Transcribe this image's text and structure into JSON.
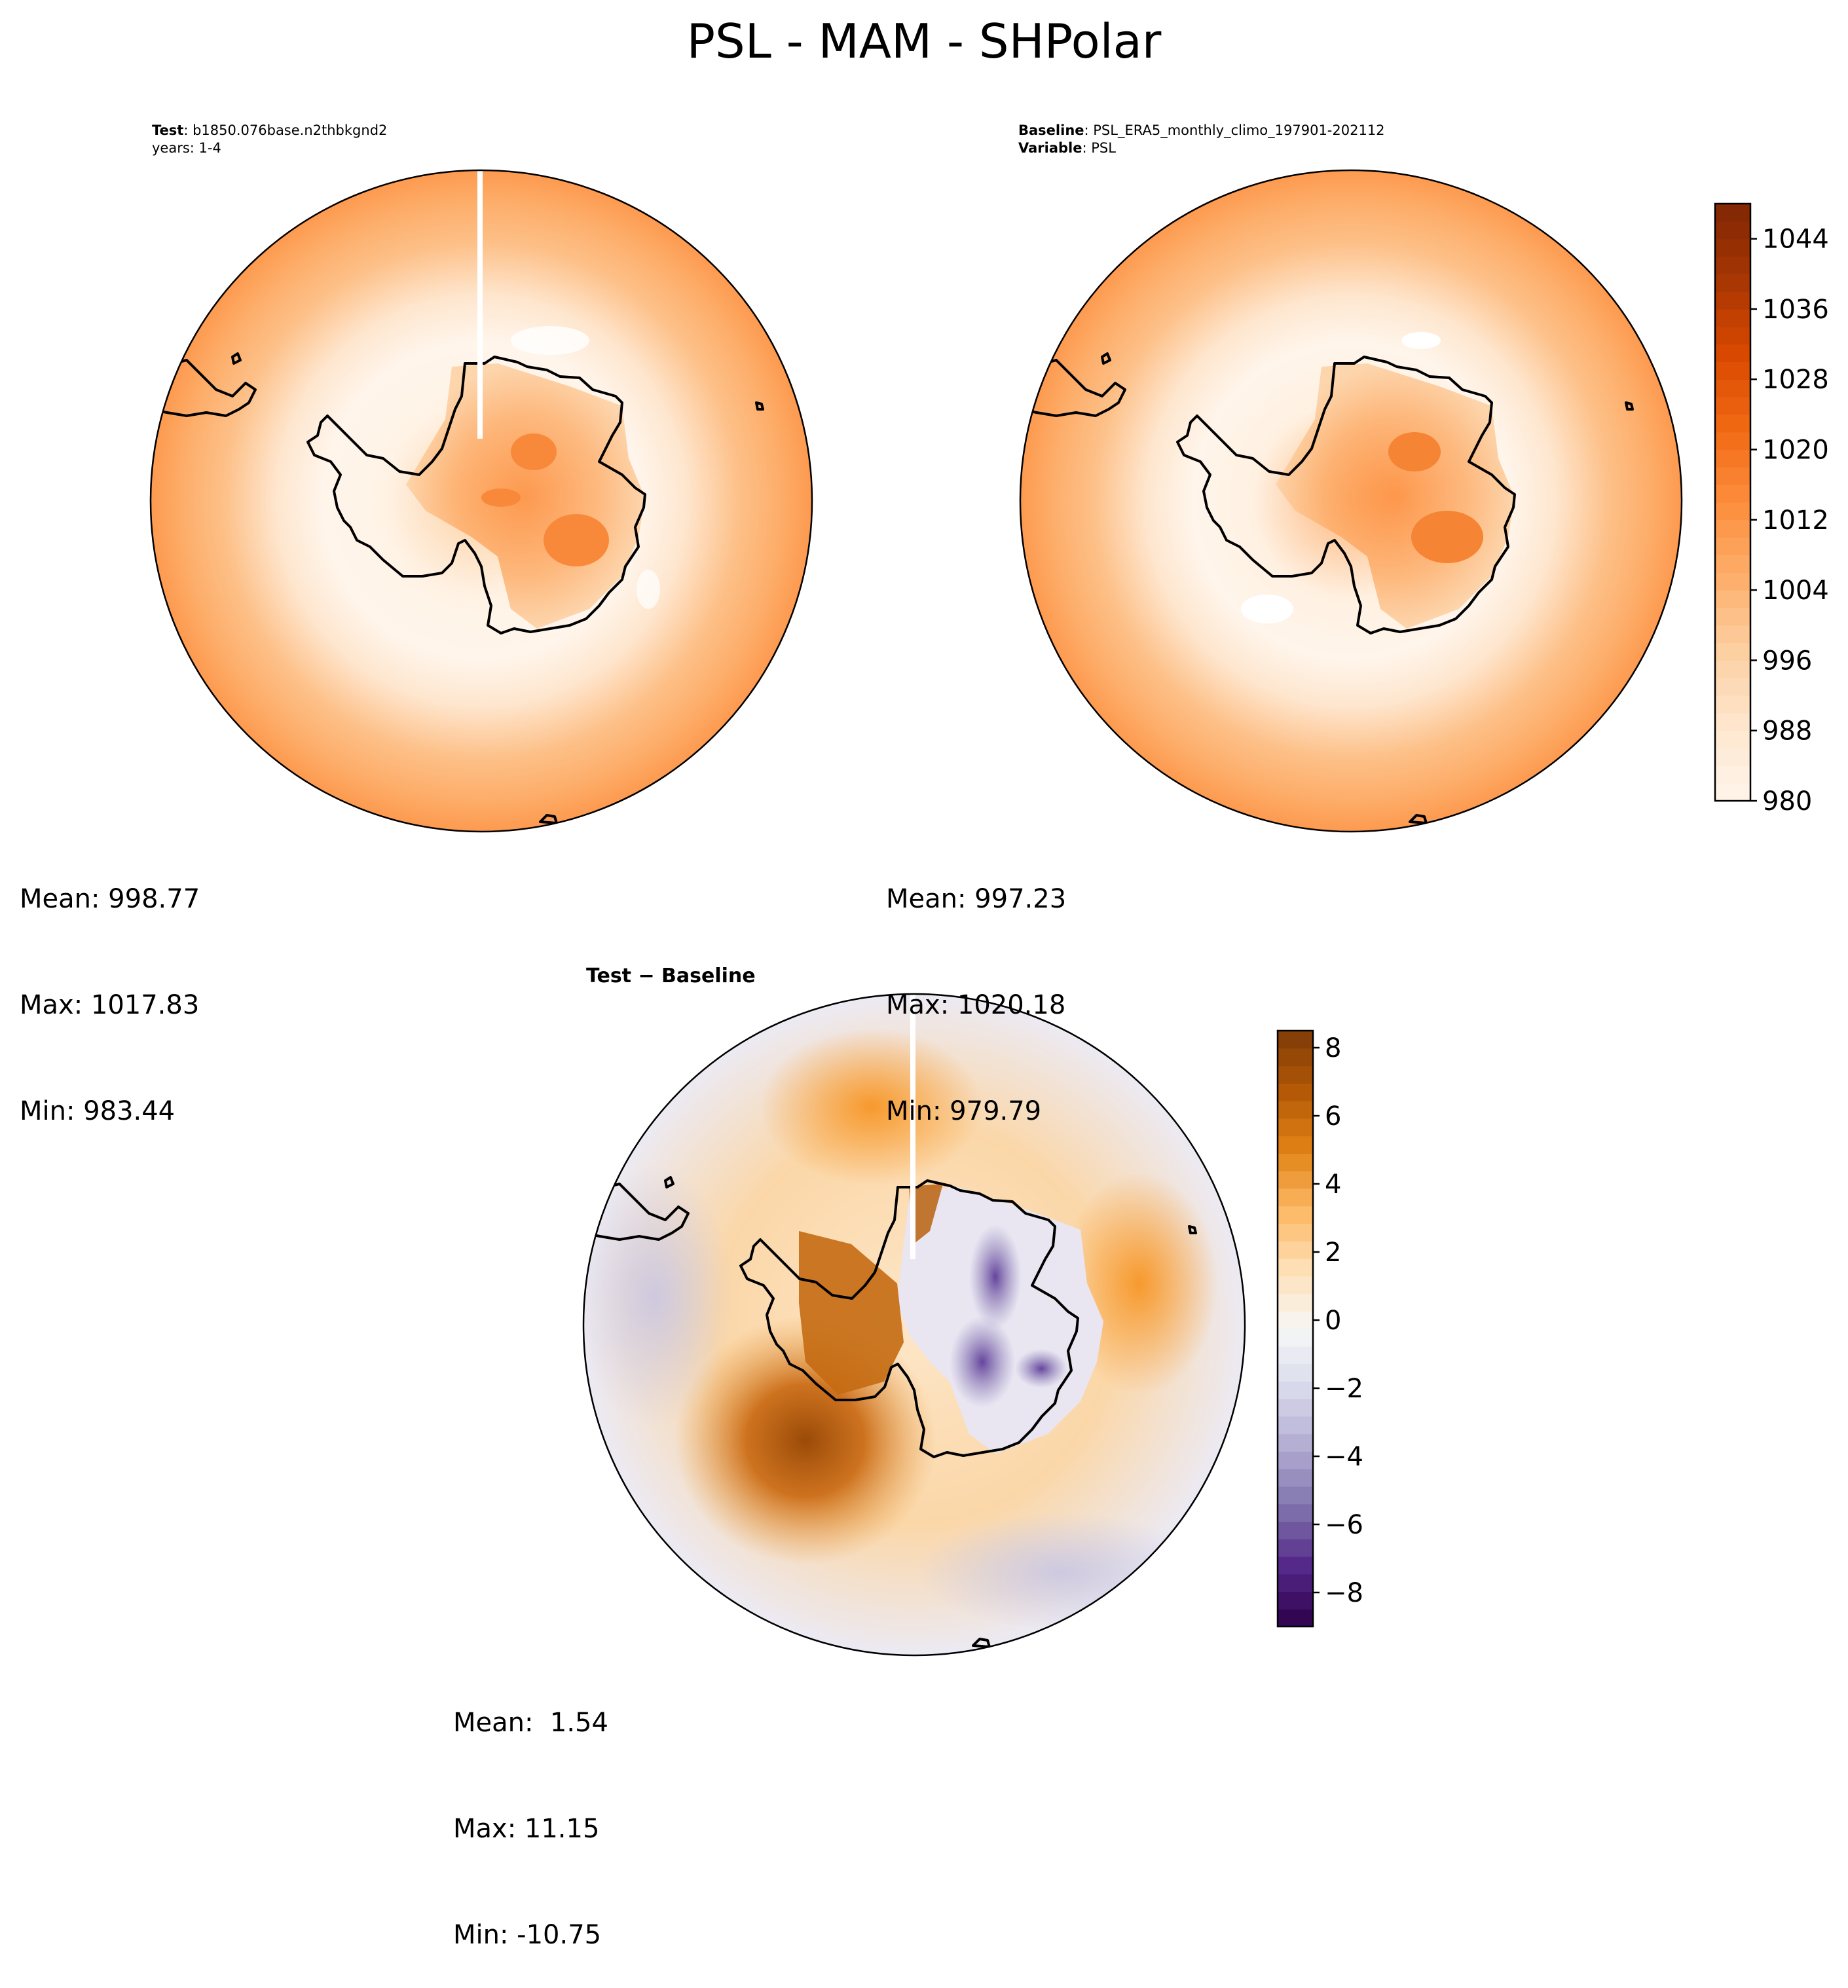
{
  "figure_title": "PSL - MAM - SHPolar",
  "panels": {
    "test": {
      "label_bold": "Test",
      "label_text": ": b1850.076base.n2thbkgnd2",
      "years": "years: 1-4",
      "stats": {
        "mean": "Mean: 998.77",
        "max": "Max: 1017.83",
        "min": "Min: 983.44"
      }
    },
    "baseline": {
      "label_bold": "Baseline",
      "label_text": ": PSL_ERA5_monthly_climo_197901-202112",
      "variable_bold": "Variable",
      "variable_text": ": PSL",
      "stats": {
        "mean": "Mean: 997.23",
        "max": "Max: 1020.18",
        "min": "Min: 979.79"
      }
    },
    "diff": {
      "label_bold": "Test − Baseline",
      "stats": {
        "mean": "Mean:  1.54",
        "max": "Max: 11.15",
        "min": "Min: -10.75"
      }
    }
  },
  "colors": {
    "oranges": [
      "#fff5eb",
      "#fee6ce",
      "#fdd0a2",
      "#fdae6b",
      "#fd8d3c",
      "#f16913",
      "#d94801",
      "#a63603",
      "#7f2704"
    ],
    "puor": [
      "#2d004b",
      "#542788",
      "#8073ac",
      "#b2abd2",
      "#d8daeb",
      "#f7f7f7",
      "#fee0b6",
      "#fdb863",
      "#e08214",
      "#b35806",
      "#7f3b08"
    ]
  },
  "chart_data": [
    {
      "type": "contour-map",
      "panel": "test",
      "projection": "south-polar-stereographic",
      "levels_range": [
        980,
        1048
      ],
      "stats": {
        "mean": 998.77,
        "max": 1017.83,
        "min": 983.44
      }
    },
    {
      "type": "contour-map",
      "panel": "baseline",
      "projection": "south-polar-stereographic",
      "levels_range": [
        980,
        1048
      ],
      "stats": {
        "mean": 997.23,
        "max": 1020.18,
        "min": 979.79
      },
      "colorbar": {
        "min": 980,
        "max": 1048,
        "ticks": [
          980,
          988,
          996,
          1004,
          1012,
          1020,
          1028,
          1036,
          1044
        ]
      }
    },
    {
      "type": "contour-map",
      "panel": "diff",
      "projection": "south-polar-stereographic",
      "levels_range": [
        -9,
        8.5
      ],
      "stats": {
        "mean": 1.54,
        "max": 11.15,
        "min": -10.75
      },
      "colorbar": {
        "min": -9,
        "max": 8.5,
        "ticks": [
          -8,
          -6,
          -4,
          -2,
          0,
          2,
          4,
          6,
          8
        ],
        "tick_labels": [
          "−8",
          "−6",
          "−4",
          "−2",
          "0",
          "2",
          "4",
          "6",
          "8"
        ]
      }
    }
  ]
}
